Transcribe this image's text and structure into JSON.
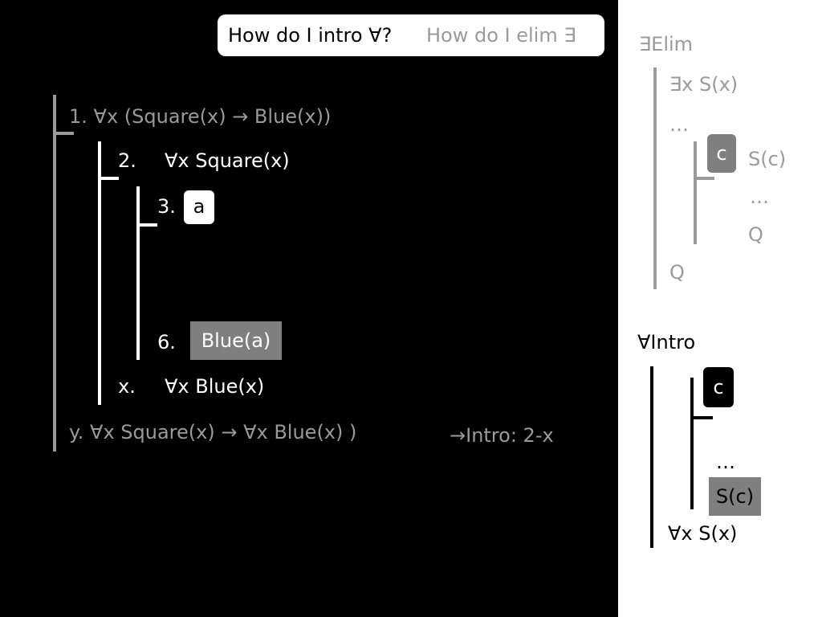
{
  "questions": {
    "intro_forall": "How do I intro ∀?",
    "elim_exists": "How do I elim ∃"
  },
  "proof": {
    "line1": "1. ∀x (Square(x) → Blue(x))",
    "line2_num": "2.",
    "line2": "∀x Square(x)",
    "line3_num": "3.",
    "line3_box": "a",
    "line6_num": "6.",
    "line6_box": "Blue(a)",
    "linex_num": "x.",
    "linex": "∀x Blue(x)",
    "liney": "y. ∀x Square(x) → ∀x Blue(x) )",
    "justification": "→Intro: 2-x"
  },
  "exists_elim": {
    "title": "∃Elim",
    "premise": "∃x S(x)",
    "dots1": "…",
    "box": "c",
    "assumption": "S(c)",
    "dots2": "…",
    "inner_conclusion": "Q",
    "conclusion": "Q"
  },
  "forall_intro": {
    "title": "∀Intro",
    "box": "c",
    "dots": "…",
    "box_result": "S(c)",
    "conclusion": "∀x S(x)"
  },
  "colors": {
    "background_left": "#000000",
    "background_right": "#ffffff",
    "gray": "#9a9a9a",
    "highlight_box": "#7f7f7f"
  }
}
